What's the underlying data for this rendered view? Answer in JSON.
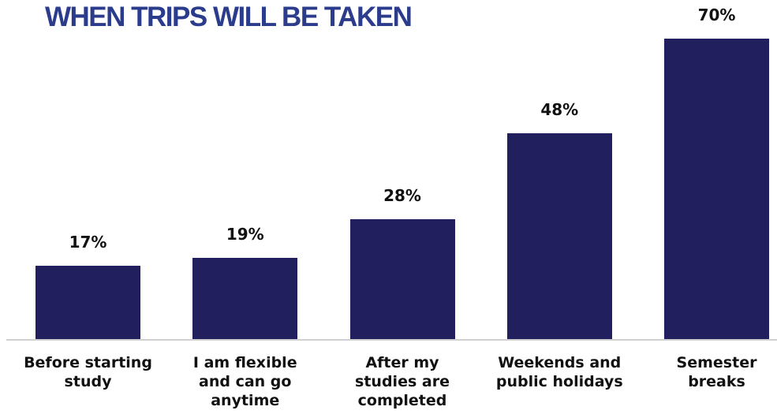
{
  "chart_data": {
    "type": "bar",
    "title": "WHEN TRIPS WILL BE TAKEN",
    "categories": [
      "Before starting study",
      "I am flexible and can go anytime",
      "After my studies are completed",
      "Weekends and public holidays",
      "Semester breaks"
    ],
    "values": [
      17,
      19,
      28,
      48,
      70
    ],
    "value_labels": [
      "17%",
      "19%",
      "28%",
      "48%",
      "70%"
    ],
    "color": "#221f5f"
  }
}
